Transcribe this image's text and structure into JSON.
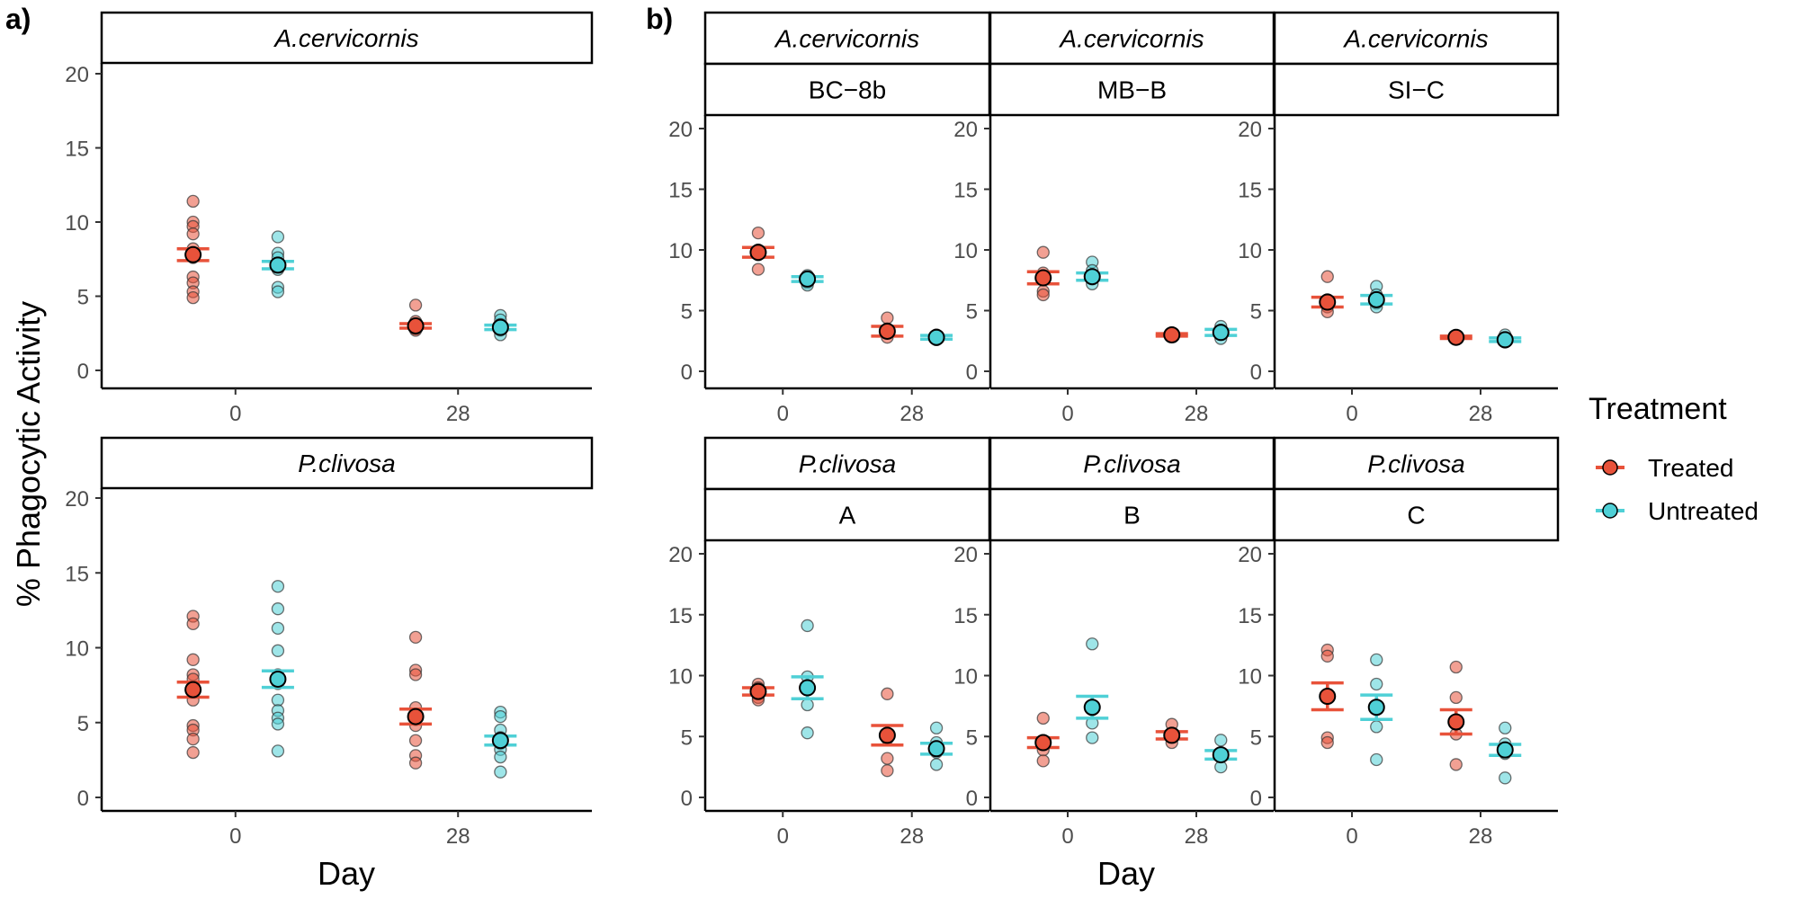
{
  "panel_labels": {
    "a": "a)",
    "b": "b)"
  },
  "colors": {
    "Treated": "#E8523A",
    "Untreated": "#4FD0D6",
    "axis": "#000000",
    "tick_text": "#4d4d4d"
  },
  "legend": {
    "title": "Treatment",
    "items": [
      {
        "label": "Treated",
        "key": "Treated"
      },
      {
        "label": "Untreated",
        "key": "Untreated"
      }
    ]
  },
  "axis": {
    "ylabel": "% Phagocytic Activity",
    "xlabel": "Day"
  },
  "chart_data": [
    {
      "type": "scatter",
      "panel": "a",
      "facets": [
        {
          "strip": [
            "A.cervicornis"
          ],
          "xticks": [
            "0",
            "28"
          ],
          "ylim": [
            0,
            20
          ],
          "yticks": [
            "0",
            "5",
            "10",
            "15",
            "20"
          ],
          "groups": [
            {
              "treatment": "Treated",
              "day": "0",
              "mean": 7.8,
              "se": 0.4,
              "points": [
                11.4,
                10.0,
                9.7,
                9.2,
                8.2,
                7.9,
                7.6,
                6.3,
                5.9,
                5.3,
                4.9
              ]
            },
            {
              "treatment": "Untreated",
              "day": "0",
              "mean": 7.1,
              "se": 0.25,
              "points": [
                9.0,
                7.9,
                7.6,
                7.1,
                6.8,
                5.6,
                5.3
              ]
            },
            {
              "treatment": "Treated",
              "day": "28",
              "mean": 3.0,
              "se": 0.15,
              "points": [
                4.4,
                3.3,
                2.9,
                2.8,
                2.7
              ]
            },
            {
              "treatment": "Untreated",
              "day": "28",
              "mean": 2.9,
              "se": 0.15,
              "points": [
                3.7,
                3.4,
                3.1,
                2.9,
                2.7,
                2.4
              ]
            }
          ]
        },
        {
          "strip": [
            "P.clivosa"
          ],
          "xticks": [
            "0",
            "28"
          ],
          "ylim": [
            0,
            20
          ],
          "yticks": [
            "0",
            "5",
            "10",
            "15",
            "20"
          ],
          "groups": [
            {
              "treatment": "Treated",
              "day": "0",
              "mean": 7.2,
              "se": 0.5,
              "points": [
                12.1,
                11.6,
                9.2,
                8.2,
                7.9,
                6.5,
                4.8,
                4.5,
                3.9,
                3.0
              ]
            },
            {
              "treatment": "Untreated",
              "day": "0",
              "mean": 7.9,
              "se": 0.55,
              "points": [
                14.1,
                12.6,
                11.3,
                9.8,
                8.2,
                7.6,
                6.5,
                5.8,
                5.3,
                4.9,
                3.1
              ]
            },
            {
              "treatment": "Treated",
              "day": "28",
              "mean": 5.4,
              "se": 0.5,
              "points": [
                10.7,
                8.5,
                8.2,
                6.0,
                5.2,
                4.8,
                3.8,
                2.8,
                2.3
              ]
            },
            {
              "treatment": "Untreated",
              "day": "28",
              "mean": 3.8,
              "se": 0.3,
              "points": [
                5.7,
                5.4,
                4.5,
                4.0,
                3.6,
                3.2,
                2.7,
                1.7
              ]
            }
          ]
        }
      ]
    },
    {
      "type": "scatter",
      "panel": "b",
      "facets": [
        {
          "strip": [
            "A.cervicornis",
            "BC−8b"
          ],
          "row": 0,
          "col": 0,
          "xticks": [
            "0",
            "28"
          ],
          "ylim": [
            0,
            20
          ],
          "yticks": [
            "0",
            "5",
            "10",
            "15",
            "20"
          ],
          "groups": [
            {
              "treatment": "Treated",
              "day": "0",
              "mean": 9.8,
              "se": 0.4,
              "points": [
                11.4,
                10.0,
                9.6,
                8.4
              ]
            },
            {
              "treatment": "Untreated",
              "day": "0",
              "mean": 7.6,
              "se": 0.2,
              "points": [
                7.9,
                7.6,
                7.3,
                7.1
              ]
            },
            {
              "treatment": "Treated",
              "day": "28",
              "mean": 3.3,
              "se": 0.4,
              "points": [
                4.4,
                3.5,
                2.8
              ]
            },
            {
              "treatment": "Untreated",
              "day": "28",
              "mean": 2.8,
              "se": 0.15,
              "points": [
                3.0,
                2.8,
                2.6
              ]
            }
          ]
        },
        {
          "strip": [
            "A.cervicornis",
            "MB−B"
          ],
          "row": 0,
          "col": 1,
          "xticks": [
            "0",
            "28"
          ],
          "ylim": [
            0,
            20
          ],
          "yticks": [
            "0",
            "5",
            "10",
            "15",
            "20"
          ],
          "groups": [
            {
              "treatment": "Treated",
              "day": "0",
              "mean": 7.7,
              "se": 0.5,
              "points": [
                9.8,
                8.1,
                7.6,
                6.6,
                6.3
              ]
            },
            {
              "treatment": "Untreated",
              "day": "0",
              "mean": 7.8,
              "se": 0.3,
              "points": [
                9.0,
                8.3,
                7.6,
                7.2
              ]
            },
            {
              "treatment": "Treated",
              "day": "28",
              "mean": 3.0,
              "se": 0.1,
              "points": [
                3.1,
                3.0,
                2.9
              ]
            },
            {
              "treatment": "Untreated",
              "day": "28",
              "mean": 3.2,
              "se": 0.25,
              "points": [
                3.7,
                3.4,
                3.2,
                2.7
              ]
            }
          ]
        },
        {
          "strip": [
            "A.cervicornis",
            "SI−C"
          ],
          "row": 0,
          "col": 2,
          "xticks": [
            "0",
            "28"
          ],
          "ylim": [
            0,
            20
          ],
          "yticks": [
            "0",
            "5",
            "10",
            "15",
            "20"
          ],
          "groups": [
            {
              "treatment": "Treated",
              "day": "0",
              "mean": 5.7,
              "se": 0.4,
              "points": [
                7.8,
                5.9,
                5.3,
                4.9
              ]
            },
            {
              "treatment": "Untreated",
              "day": "0",
              "mean": 5.9,
              "se": 0.35,
              "points": [
                7.0,
                6.3,
                5.6,
                5.3
              ]
            },
            {
              "treatment": "Treated",
              "day": "28",
              "mean": 2.8,
              "se": 0.1,
              "points": [
                2.9,
                2.8,
                2.7
              ]
            },
            {
              "treatment": "Untreated",
              "day": "28",
              "mean": 2.6,
              "se": 0.15,
              "points": [
                3.0,
                2.7,
                2.4
              ]
            }
          ]
        },
        {
          "strip": [
            "P.clivosa",
            "A"
          ],
          "row": 1,
          "col": 0,
          "xticks": [
            "0",
            "28"
          ],
          "ylim": [
            0,
            20
          ],
          "yticks": [
            "0",
            "5",
            "10",
            "15",
            "20"
          ],
          "groups": [
            {
              "treatment": "Treated",
              "day": "0",
              "mean": 8.7,
              "se": 0.3,
              "points": [
                9.3,
                9.0,
                8.5,
                8.2,
                8.0
              ]
            },
            {
              "treatment": "Untreated",
              "day": "0",
              "mean": 9.0,
              "se": 0.9,
              "points": [
                14.1,
                9.9,
                7.6,
                5.3
              ]
            },
            {
              "treatment": "Treated",
              "day": "28",
              "mean": 5.1,
              "se": 0.8,
              "points": [
                8.5,
                4.8,
                3.2,
                2.2
              ]
            },
            {
              "treatment": "Untreated",
              "day": "28",
              "mean": 4.0,
              "se": 0.45,
              "points": [
                5.7,
                4.5,
                3.7,
                2.7
              ]
            }
          ]
        },
        {
          "strip": [
            "P.clivosa",
            "B"
          ],
          "row": 1,
          "col": 1,
          "xticks": [
            "0",
            "28"
          ],
          "ylim": [
            0,
            20
          ],
          "yticks": [
            "0",
            "5",
            "10",
            "15",
            "20"
          ],
          "groups": [
            {
              "treatment": "Treated",
              "day": "0",
              "mean": 4.5,
              "se": 0.4,
              "points": [
                6.5,
                4.6,
                3.9,
                3.0
              ]
            },
            {
              "treatment": "Untreated",
              "day": "0",
              "mean": 7.4,
              "se": 0.9,
              "points": [
                12.6,
                7.2,
                6.1,
                4.9
              ]
            },
            {
              "treatment": "Treated",
              "day": "28",
              "mean": 5.1,
              "se": 0.3,
              "points": [
                6.0,
                5.2,
                4.5
              ]
            },
            {
              "treatment": "Untreated",
              "day": "28",
              "mean": 3.5,
              "se": 0.35,
              "points": [
                4.7,
                3.5,
                2.5
              ]
            }
          ]
        },
        {
          "strip": [
            "P.clivosa",
            "C"
          ],
          "row": 1,
          "col": 2,
          "xticks": [
            "0",
            "28"
          ],
          "ylim": [
            0,
            20
          ],
          "yticks": [
            "0",
            "5",
            "10",
            "15",
            "20"
          ],
          "groups": [
            {
              "treatment": "Treated",
              "day": "0",
              "mean": 8.3,
              "se": 1.1,
              "points": [
                12.1,
                11.6,
                4.9,
                4.5
              ]
            },
            {
              "treatment": "Untreated",
              "day": "0",
              "mean": 7.4,
              "se": 1.0,
              "points": [
                11.3,
                9.3,
                5.8,
                3.1
              ]
            },
            {
              "treatment": "Treated",
              "day": "28",
              "mean": 6.2,
              "se": 1.0,
              "points": [
                10.7,
                8.2,
                5.2,
                2.7
              ]
            },
            {
              "treatment": "Untreated",
              "day": "28",
              "mean": 3.9,
              "se": 0.45,
              "points": [
                5.7,
                4.4,
                3.6,
                1.6
              ]
            }
          ]
        }
      ]
    }
  ]
}
